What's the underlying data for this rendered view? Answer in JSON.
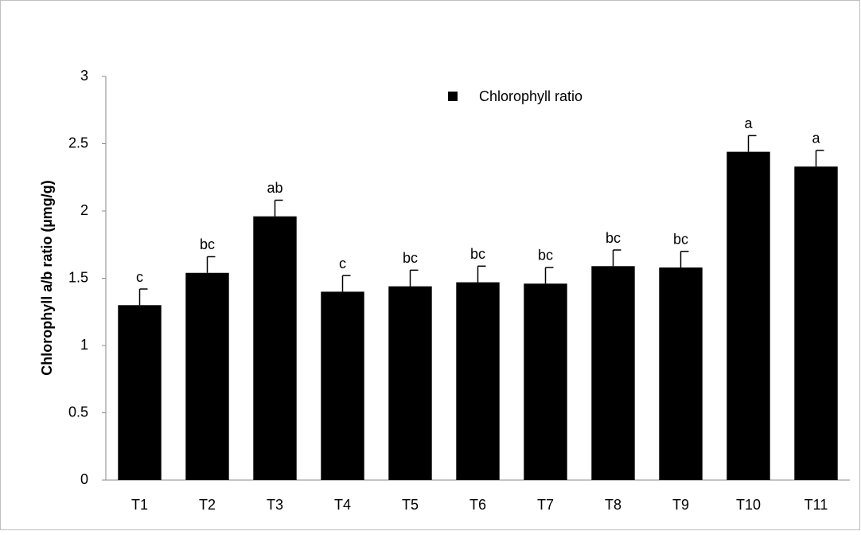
{
  "chart_data": {
    "type": "bar",
    "ylabel": "Chlorophyll a/b ratio (µmg/g)",
    "categories": [
      "T1",
      "T2",
      "T3",
      "T4",
      "T5",
      "T6",
      "T7",
      "T8",
      "T9",
      "T10",
      "T11"
    ],
    "series": [
      {
        "name": "Chlorophyll ratio",
        "color": "#000000",
        "values": [
          1.3,
          1.54,
          1.96,
          1.4,
          1.44,
          1.47,
          1.46,
          1.59,
          1.58,
          2.44,
          2.33
        ],
        "errors": [
          0.12,
          0.12,
          0.12,
          0.12,
          0.12,
          0.12,
          0.12,
          0.12,
          0.12,
          0.12,
          0.12
        ],
        "annotations": [
          "c",
          "bc",
          "ab",
          "c",
          "bc",
          "bc",
          "bc",
          "bc",
          "bc",
          "a",
          "a"
        ]
      }
    ],
    "ylim": [
      0,
      3
    ],
    "yticks": [
      0,
      0.5,
      1,
      1.5,
      2,
      2.5,
      3
    ],
    "grid": false,
    "legend": "top"
  }
}
